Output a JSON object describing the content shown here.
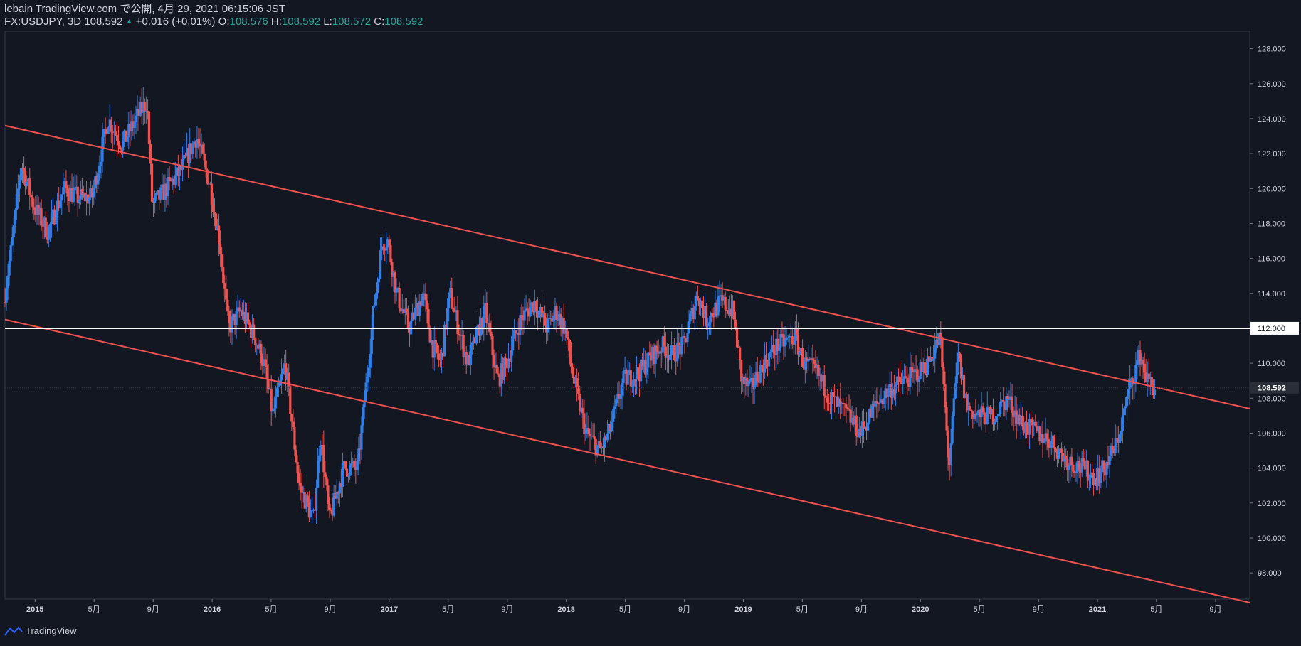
{
  "header": {
    "publish_line": "lebain TradingView.com で公開, 4月 29, 2021 06:15:06 JST",
    "symbol": "FX:USDJPY, 3D",
    "last": "108.592",
    "change_arrow": "▲",
    "change": "+0.016 (+0.01%)",
    "o_label": "O:",
    "o_value": "108.576",
    "h_label": "H:",
    "h_value": "108.592",
    "l_label": "L:",
    "l_value": "108.572",
    "c_label": "C:",
    "c_value": "108.592"
  },
  "footer": {
    "brand": "TradingView"
  },
  "colors": {
    "background": "#131722",
    "up": "#2f80ed",
    "down": "#ef5350",
    "trendline": "#f0524f",
    "hline": "#ffffff",
    "text": "#d1d4dc",
    "teal": "#26a69a"
  },
  "chart_data": {
    "type": "candlestick",
    "symbol": "FX:USDJPY",
    "interval": "3D",
    "ylim": [
      96.5,
      129
    ],
    "y_ticks": [
      "98.000",
      "100.000",
      "102.000",
      "104.000",
      "106.000",
      "108.000",
      "110.000",
      "112.000",
      "114.000",
      "116.000",
      "118.000",
      "120.000",
      "122.000",
      "124.000",
      "126.000",
      "128.000"
    ],
    "x_ticks": [
      {
        "label": "2015",
        "t": 2015.0
      },
      {
        "label": "5月",
        "t": 2015.333
      },
      {
        "label": "9月",
        "t": 2015.667
      },
      {
        "label": "2016",
        "t": 2016.0
      },
      {
        "label": "5月",
        "t": 2016.333
      },
      {
        "label": "9月",
        "t": 2016.667
      },
      {
        "label": "2017",
        "t": 2017.0
      },
      {
        "label": "5月",
        "t": 2017.333
      },
      {
        "label": "9月",
        "t": 2017.667
      },
      {
        "label": "2018",
        "t": 2018.0
      },
      {
        "label": "5月",
        "t": 2018.333
      },
      {
        "label": "9月",
        "t": 2018.667
      },
      {
        "label": "2019",
        "t": 2019.0
      },
      {
        "label": "5月",
        "t": 2019.333
      },
      {
        "label": "9月",
        "t": 2019.667
      },
      {
        "label": "2020",
        "t": 2020.0
      },
      {
        "label": "5月",
        "t": 2020.333
      },
      {
        "label": "9月",
        "t": 2020.667
      },
      {
        "label": "2021",
        "t": 2021.0
      },
      {
        "label": "5月",
        "t": 2021.333
      },
      {
        "label": "9月",
        "t": 2021.667
      }
    ],
    "xlim": [
      2014.83,
      2021.86
    ],
    "last_price": 108.592,
    "last_price_label": "108.592",
    "horizontal_line": {
      "price": 112.0,
      "label": "112.000"
    },
    "trendlines": [
      {
        "name": "upper channel",
        "t1": 2014.83,
        "p1": 123.6,
        "t2": 2021.86,
        "p2": 107.4
      },
      {
        "name": "lower channel",
        "t1": 2014.83,
        "p1": 112.5,
        "t2": 2021.86,
        "p2": 96.3
      }
    ],
    "price_path": [
      [
        2014.83,
        113.5
      ],
      [
        2014.88,
        117
      ],
      [
        2014.93,
        121.5
      ],
      [
        2015.0,
        119
      ],
      [
        2015.08,
        117.5
      ],
      [
        2015.17,
        120
      ],
      [
        2015.25,
        119.5
      ],
      [
        2015.33,
        119.5
      ],
      [
        2015.42,
        124
      ],
      [
        2015.5,
        122.5
      ],
      [
        2015.58,
        124
      ],
      [
        2015.64,
        125
      ],
      [
        2015.67,
        119
      ],
      [
        2015.75,
        120
      ],
      [
        2015.83,
        121
      ],
      [
        2015.92,
        123
      ],
      [
        2016.0,
        120
      ],
      [
        2016.05,
        117
      ],
      [
        2016.1,
        112
      ],
      [
        2016.17,
        113
      ],
      [
        2016.25,
        111.5
      ],
      [
        2016.3,
        110
      ],
      [
        2016.35,
        107
      ],
      [
        2016.42,
        110
      ],
      [
        2016.5,
        103
      ],
      [
        2016.58,
        101
      ],
      [
        2016.62,
        106
      ],
      [
        2016.67,
        101
      ],
      [
        2016.75,
        104
      ],
      [
        2016.83,
        104
      ],
      [
        2016.92,
        113
      ],
      [
        2016.97,
        117
      ],
      [
        2017.0,
        117
      ],
      [
        2017.05,
        114
      ],
      [
        2017.12,
        112
      ],
      [
        2017.2,
        114
      ],
      [
        2017.25,
        111
      ],
      [
        2017.3,
        110
      ],
      [
        2017.35,
        114
      ],
      [
        2017.45,
        110
      ],
      [
        2017.55,
        113
      ],
      [
        2017.62,
        109
      ],
      [
        2017.67,
        110
      ],
      [
        2017.75,
        112.5
      ],
      [
        2017.83,
        113.5
      ],
      [
        2017.9,
        112
      ],
      [
        2017.95,
        113
      ],
      [
        2018.0,
        112
      ],
      [
        2018.05,
        109
      ],
      [
        2018.12,
        106
      ],
      [
        2018.2,
        105
      ],
      [
        2018.25,
        106
      ],
      [
        2018.33,
        109
      ],
      [
        2018.42,
        109.5
      ],
      [
        2018.5,
        110.5
      ],
      [
        2018.55,
        111
      ],
      [
        2018.6,
        110.5
      ],
      [
        2018.67,
        111
      ],
      [
        2018.75,
        114
      ],
      [
        2018.8,
        112.5
      ],
      [
        2018.88,
        113.5
      ],
      [
        2018.95,
        113
      ],
      [
        2019.0,
        109
      ],
      [
        2019.05,
        108.5
      ],
      [
        2019.12,
        110
      ],
      [
        2019.2,
        111
      ],
      [
        2019.3,
        111.5
      ],
      [
        2019.35,
        110
      ],
      [
        2019.42,
        109.5
      ],
      [
        2019.5,
        108
      ],
      [
        2019.6,
        107
      ],
      [
        2019.67,
        106
      ],
      [
        2019.75,
        107.5
      ],
      [
        2019.83,
        108.5
      ],
      [
        2019.92,
        109
      ],
      [
        2020.0,
        109.5
      ],
      [
        2020.05,
        110
      ],
      [
        2020.12,
        111.5
      ],
      [
        2020.17,
        104
      ],
      [
        2020.22,
        110.5
      ],
      [
        2020.27,
        107.5
      ],
      [
        2020.33,
        107
      ],
      [
        2020.42,
        107
      ],
      [
        2020.5,
        108
      ],
      [
        2020.58,
        106.5
      ],
      [
        2020.67,
        106
      ],
      [
        2020.75,
        105.5
      ],
      [
        2020.83,
        104.5
      ],
      [
        2020.92,
        104
      ],
      [
        2021.0,
        103.5
      ],
      [
        2021.05,
        104
      ],
      [
        2021.12,
        105.5
      ],
      [
        2021.2,
        109
      ],
      [
        2021.25,
        110.5
      ],
      [
        2021.29,
        109
      ],
      [
        2021.33,
        108.6
      ]
    ]
  }
}
